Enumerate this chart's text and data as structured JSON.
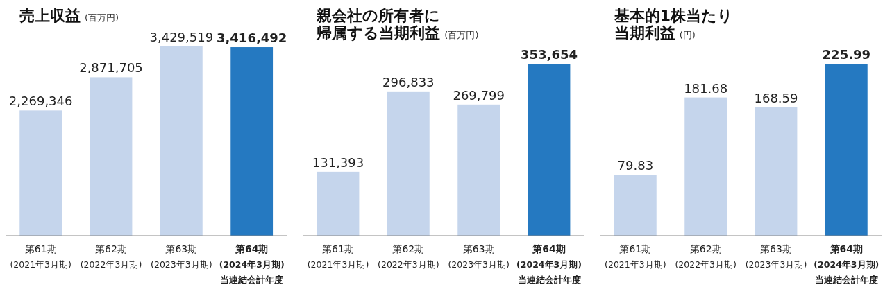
{
  "chart_data": [
    {
      "type": "bar",
      "title": "売上収益",
      "subtitle": "(百万円)",
      "categories": [
        "第61期\n(2021年3月期)",
        "第62期\n(2022年3月期)",
        "第63期\n(2023年3月期)",
        "**第64期**\n**(2024年3月期)**\n**当連結会計年度**"
      ],
      "values": [
        2269346,
        2871705,
        3429519,
        3416492
      ],
      "value_labels": [
        "2,269,346",
        "2,871,705",
        "3,429,519",
        "**3,416,492**"
      ],
      "colors": [
        "#c5d5ec",
        "#c5d5ec",
        "#c5d5ec",
        "#2579c1"
      ]
    },
    {
      "type": "bar",
      "title": "親会社の所有者に帰属する当期利益",
      "subtitle": "(百万円)",
      "categories": [
        "第61期\n(2021年3月期)",
        "第62期\n(2022年3月期)",
        "第63期\n(2023年3月期)",
        "**第64期**\n**(2024年3月期)**\n**当連結会計年度**"
      ],
      "values": [
        131393,
        296833,
        269799,
        353654
      ],
      "value_labels": [
        "131,393",
        "296,833",
        "269,799",
        "**353,654**"
      ],
      "colors": [
        "#c5d5ec",
        "#c5d5ec",
        "#c5d5ec",
        "#2579c1"
      ]
    },
    {
      "type": "bar",
      "title": "基本的1株当たり当期利益",
      "subtitle": "(円)",
      "categories": [
        "第61期\n(2021年3月期)",
        "第62期\n(2022年3月期)",
        "第63期\n(2023年3月期)",
        "**第64期**\n**(2024年3月期)**\n**当連結会計年度**"
      ],
      "values": [
        79.83,
        181.68,
        168.59,
        225.99
      ],
      "value_labels": [
        "79.83",
        "181.68",
        "168.59",
        "**225.99**"
      ],
      "colors": [
        "#c5d5ec",
        "#c5d5ec",
        "#c5d5ec",
        "#2579c1"
      ]
    }
  ]
}
